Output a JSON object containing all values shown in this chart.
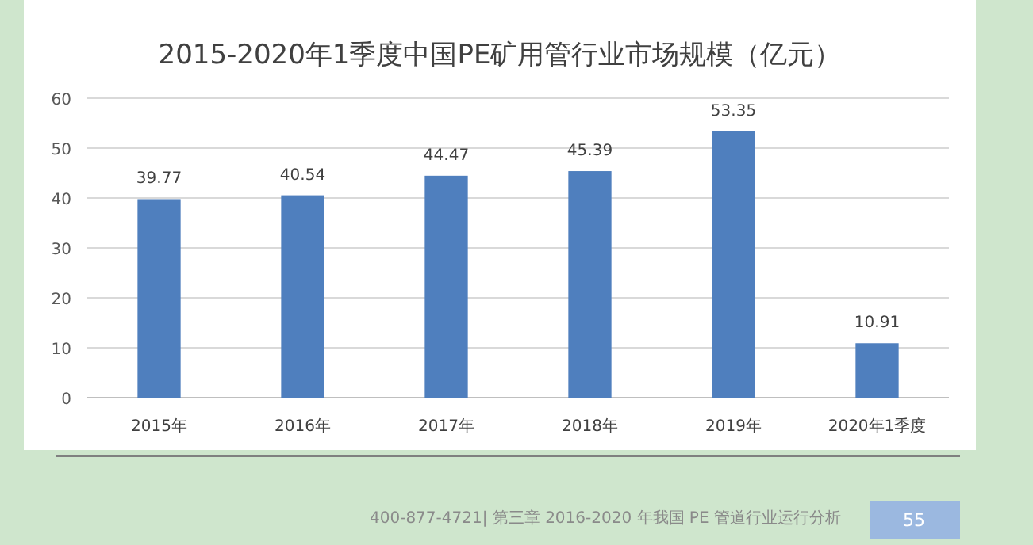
{
  "chart_data": {
    "type": "bar",
    "title": "2015-2020年1季度中国PE矿用管行业市场规模（亿元）",
    "categories": [
      "2015年",
      "2016年",
      "2017年",
      "2018年",
      "2019年",
      "2020年1季度"
    ],
    "values": [
      39.77,
      40.54,
      44.47,
      45.39,
      53.35,
      10.91
    ],
    "color": "#4f7fbe",
    "ylim": [
      0,
      60
    ],
    "yticks": [
      0,
      10,
      20,
      30,
      40,
      50,
      60
    ],
    "grid": "y",
    "data_labels": true,
    "annotations": [
      "400-877-4721| 第三章 2016-2020 年我国 PE 管道行业运行分析",
      "55"
    ]
  }
}
